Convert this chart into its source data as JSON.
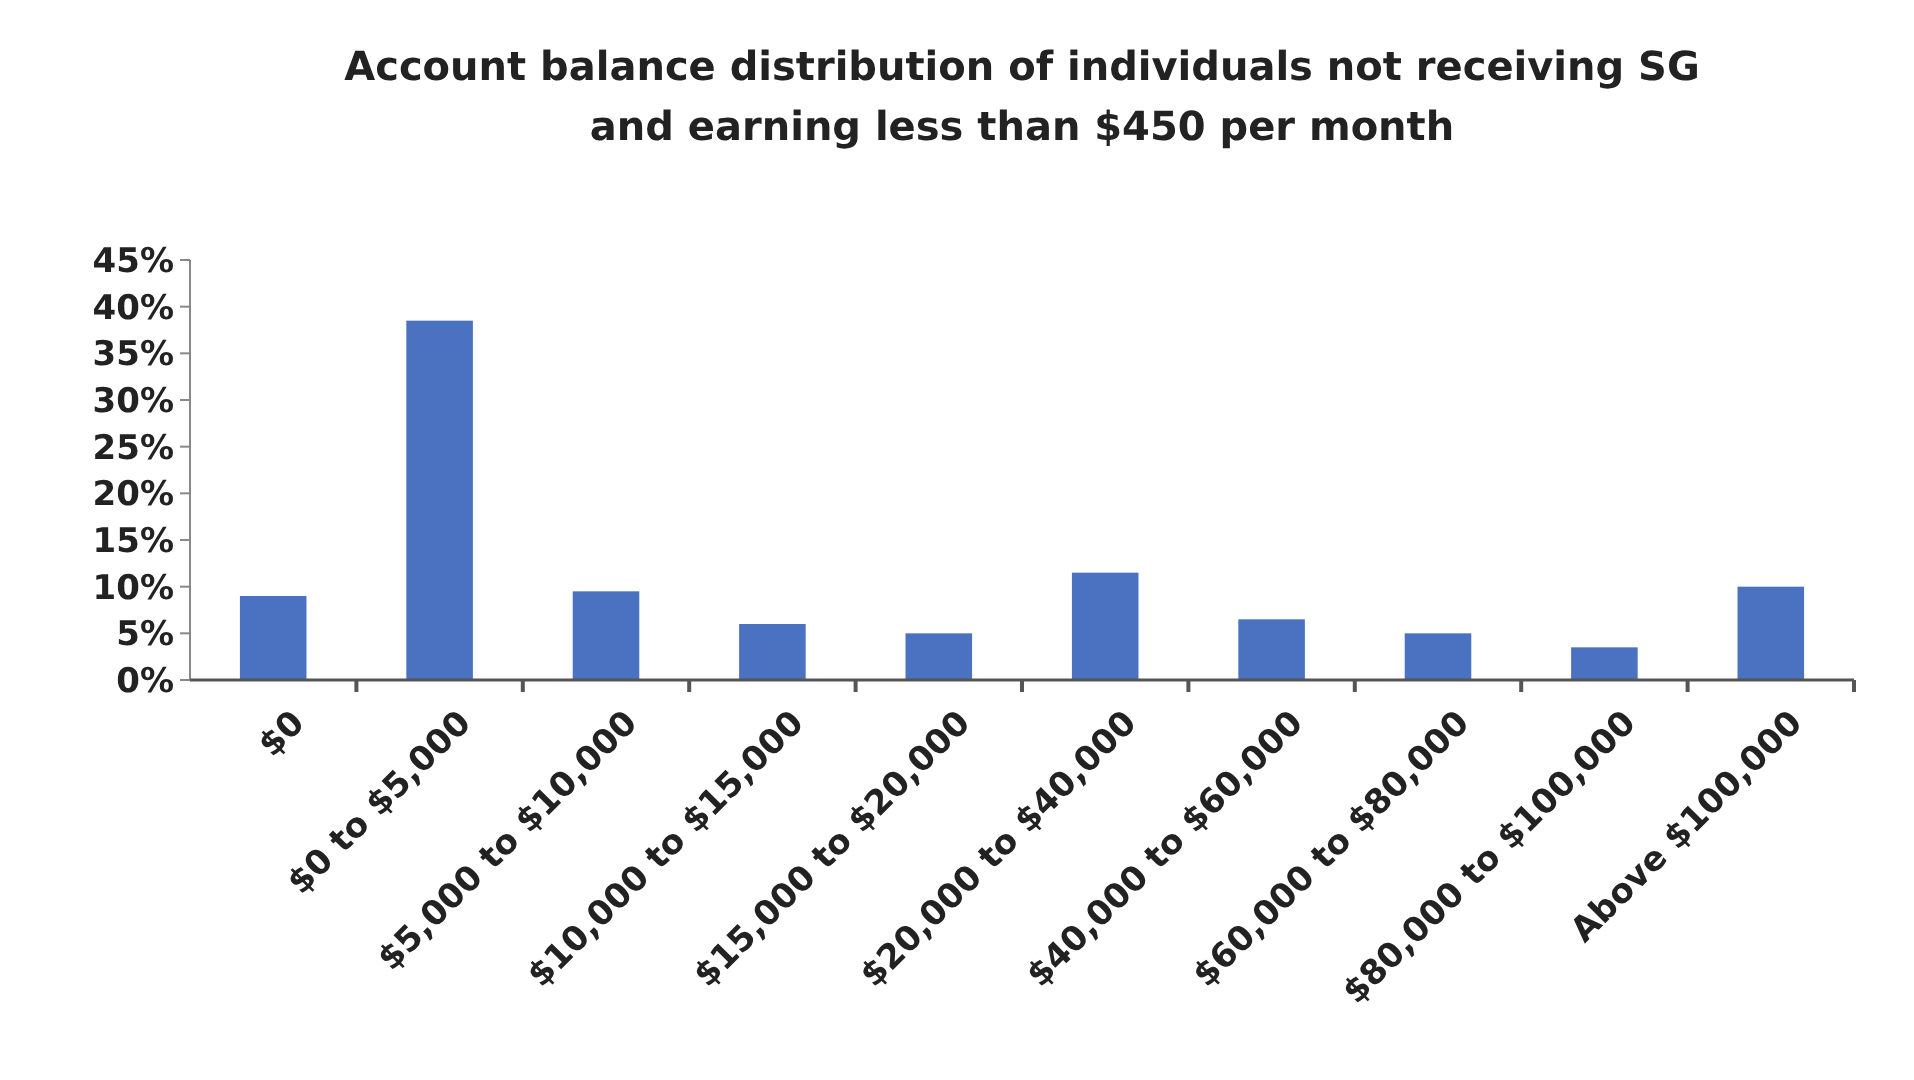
{
  "chart_data": {
    "type": "bar",
    "title": "Account balance distribution of individuals not receiving SG and earning less than $450 per month",
    "categories": [
      "$0",
      "$0 to $5,000",
      "$5,000 to $10,000",
      "$10,000 to $15,000",
      "$15,000 to $20,000",
      "$20,000 to $40,000",
      "$40,000 to $60,000",
      "$60,000 to $80,000",
      "$80,000 to $100,000",
      "Above $100,000"
    ],
    "values": [
      9,
      38.5,
      9.5,
      6,
      5,
      11.5,
      6.5,
      5,
      3.5,
      10
    ],
    "color": "#4a72c0",
    "ylim": [
      0,
      45
    ],
    "yticks": [
      {
        "value": 0,
        "label": "0%"
      },
      {
        "value": 5,
        "label": "5%"
      },
      {
        "value": 10,
        "label": "10%"
      },
      {
        "value": 15,
        "label": "15%"
      },
      {
        "value": 20,
        "label": "20%"
      },
      {
        "value": 25,
        "label": "25%"
      },
      {
        "value": 30,
        "label": "30%"
      },
      {
        "value": 35,
        "label": "35%"
      },
      {
        "value": 40,
        "label": "40%"
      },
      {
        "value": 45,
        "label": "45%"
      }
    ],
    "grid": false
  }
}
